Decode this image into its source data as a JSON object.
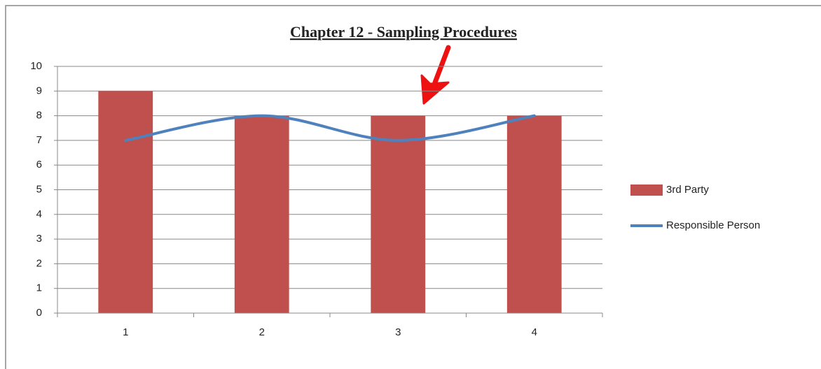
{
  "chart_data": {
    "type": "combo",
    "title": "Chapter 12 - Sampling Procedures",
    "categories": [
      "1",
      "2",
      "3",
      "4"
    ],
    "series": [
      {
        "name": "3rd Party",
        "type": "bar",
        "color": "#c0504d",
        "values": [
          9,
          8,
          8,
          8
        ]
      },
      {
        "name": "Responsible Person",
        "type": "line",
        "smooth": true,
        "color": "#4f81bd",
        "values": [
          7,
          8,
          7,
          8
        ]
      }
    ],
    "ylim": [
      0,
      10
    ],
    "yticks": [
      0,
      1,
      2,
      3,
      4,
      5,
      6,
      7,
      8,
      9,
      10
    ],
    "grid": true,
    "legend": "right"
  }
}
